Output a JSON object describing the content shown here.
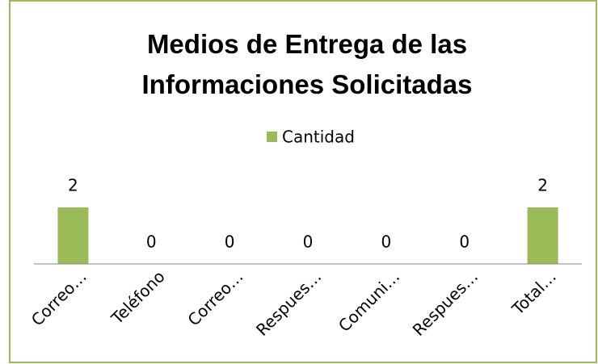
{
  "chart_data": {
    "type": "bar",
    "title": "Medios de Entrega de las Informaciones Solicitadas",
    "categories": [
      "Correo…",
      "Teléfono",
      "Correo…",
      "Respues…",
      "Comuni…",
      "Respues…",
      "Total…"
    ],
    "series": [
      {
        "name": "Cantidad",
        "color": "#9bbb59",
        "values": [
          2,
          0,
          0,
          0,
          0,
          0,
          2
        ]
      }
    ],
    "legend": "top"
  }
}
